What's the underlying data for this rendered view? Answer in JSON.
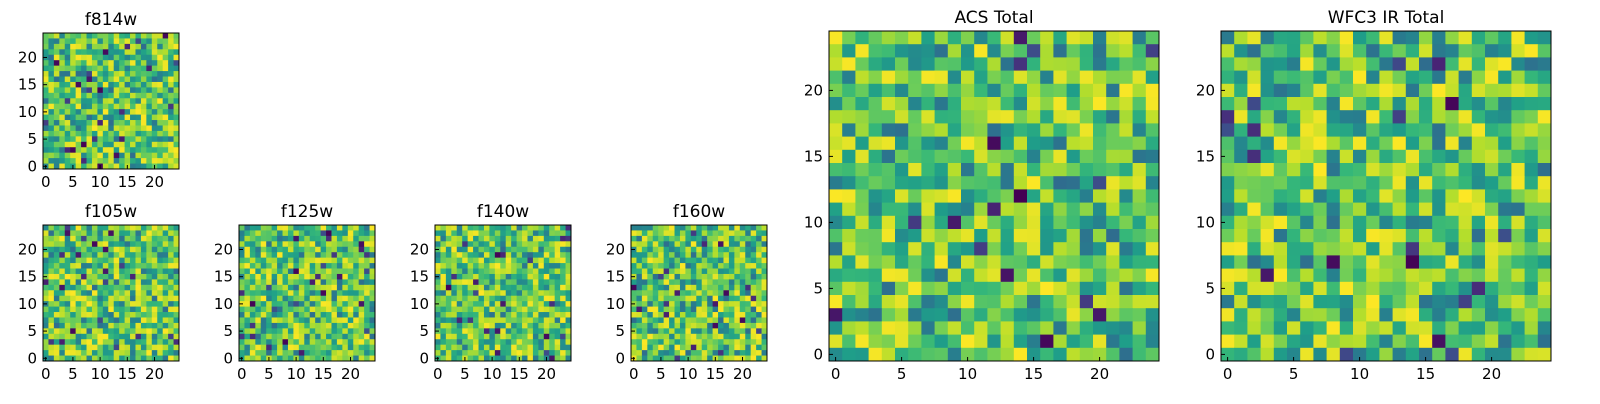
{
  "figure": {
    "colormap": "viridis",
    "background": "#ffffff"
  },
  "chart_data": [
    {
      "id": "f814w",
      "type": "heatmap",
      "title": "f814w",
      "xlim": [
        0,
        25
      ],
      "ylim": [
        0,
        25
      ],
      "xticks": [
        "0",
        "5",
        "10",
        "15",
        "20"
      ],
      "yticks": [
        "0",
        "5",
        "10",
        "15",
        "20"
      ],
      "seed": 11
    },
    {
      "id": "f105w",
      "type": "heatmap",
      "title": "f105w",
      "xlim": [
        0,
        25
      ],
      "ylim": [
        0,
        25
      ],
      "xticks": [
        "0",
        "5",
        "10",
        "15",
        "20"
      ],
      "yticks": [
        "0",
        "5",
        "10",
        "15",
        "20"
      ],
      "seed": 23
    },
    {
      "id": "f125w",
      "type": "heatmap",
      "title": "f125w",
      "xlim": [
        0,
        25
      ],
      "ylim": [
        0,
        25
      ],
      "xticks": [
        "0",
        "5",
        "10",
        "15",
        "20"
      ],
      "yticks": [
        "0",
        "5",
        "10",
        "15",
        "20"
      ],
      "seed": 37
    },
    {
      "id": "f140w",
      "type": "heatmap",
      "title": "f140w",
      "xlim": [
        0,
        25
      ],
      "ylim": [
        0,
        25
      ],
      "xticks": [
        "0",
        "5",
        "10",
        "15",
        "20"
      ],
      "yticks": [
        "0",
        "5",
        "10",
        "15",
        "20"
      ],
      "seed": 41
    },
    {
      "id": "f160w",
      "type": "heatmap",
      "title": "f160w",
      "xlim": [
        0,
        25
      ],
      "ylim": [
        0,
        25
      ],
      "xticks": [
        "0",
        "5",
        "10",
        "15",
        "20"
      ],
      "yticks": [
        "0",
        "5",
        "10",
        "15",
        "20"
      ],
      "seed": 53
    },
    {
      "id": "acs-total",
      "type": "heatmap",
      "title": "ACS Total",
      "xlim": [
        0,
        25
      ],
      "ylim": [
        0,
        25
      ],
      "xticks": [
        "0",
        "5",
        "10",
        "15",
        "20"
      ],
      "yticks": [
        "0",
        "5",
        "10",
        "15",
        "20"
      ],
      "seed": 67
    },
    {
      "id": "wfc3-ir-total",
      "type": "heatmap",
      "title": "WFC3 IR Total",
      "xlim": [
        0,
        25
      ],
      "ylim": [
        0,
        25
      ],
      "xticks": [
        "0",
        "5",
        "10",
        "15",
        "20"
      ],
      "yticks": [
        "0",
        "5",
        "10",
        "15",
        "20"
      ],
      "seed": 79
    }
  ]
}
